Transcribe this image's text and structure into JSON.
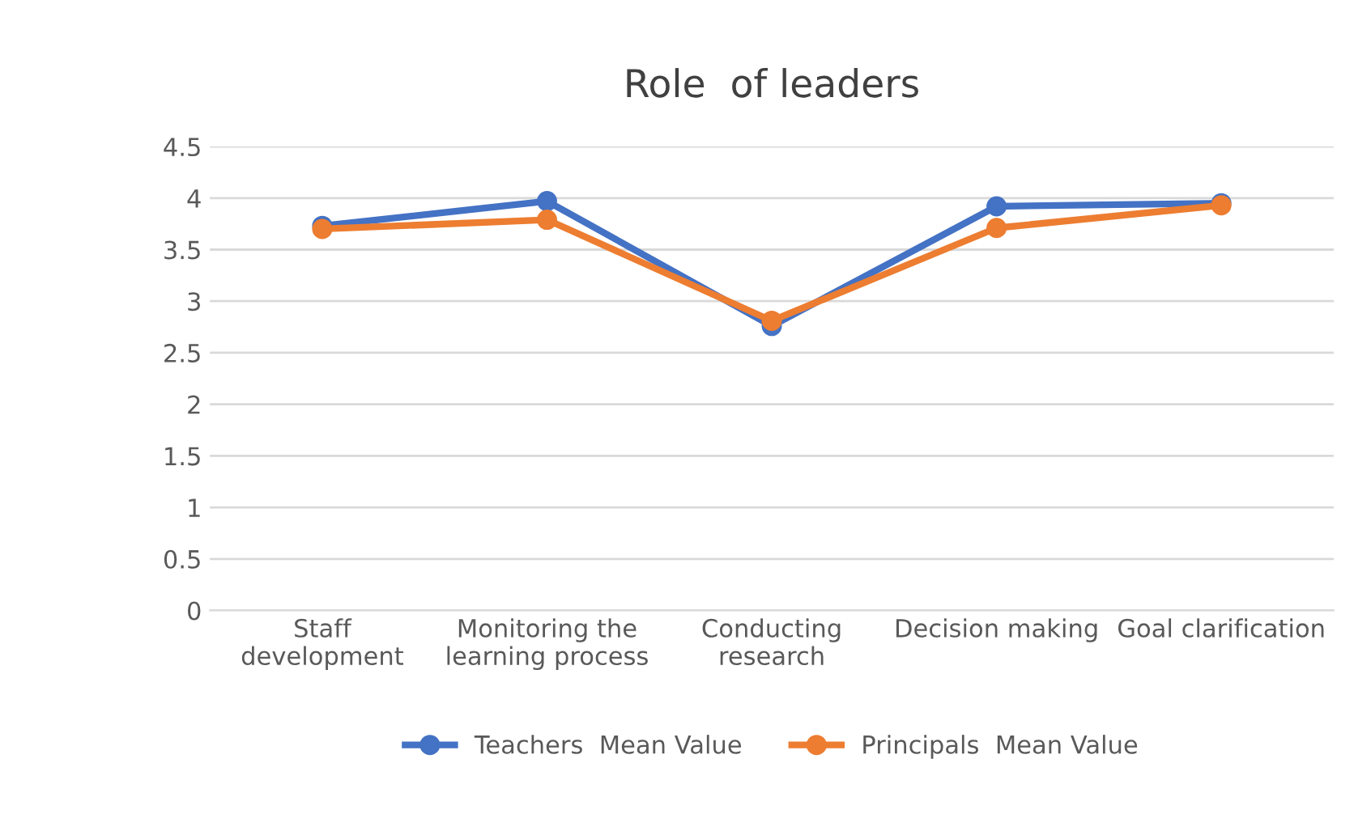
{
  "chart_data": {
    "type": "line",
    "title": "Role  of leaders",
    "categories": [
      "Staff\ndevelopment",
      "Monitoring the\nlearning process",
      "Conducting\nresearch",
      "Decision making",
      "Goal clarification"
    ],
    "series": [
      {
        "name": "Teachers  Mean Value",
        "color": "#4472c4",
        "values": [
          3.73,
          3.97,
          2.76,
          3.92,
          3.95
        ]
      },
      {
        "name": "Principals  Mean Value",
        "color": "#ed7d31",
        "values": [
          3.7,
          3.79,
          2.81,
          3.71,
          3.93
        ]
      }
    ],
    "ylim": [
      0,
      4.5
    ],
    "yticks": [
      0,
      0.5,
      1,
      1.5,
      2,
      2.5,
      3,
      3.5,
      4,
      4.5
    ],
    "grid": "y",
    "legend": "bottom",
    "marker": "circle",
    "line_style": "solid"
  }
}
